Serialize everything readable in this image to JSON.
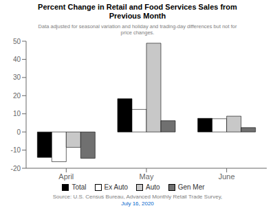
{
  "chart_data": {
    "type": "bar",
    "title": "Percent Change in Retail and Food Services Sales from\nPrevious Month",
    "subtitle": "Data adjusted for seasonal variation and holiday and trading-day differences but not for\nprice changes.",
    "annotations": [
      "Source: U.S. Census Bureau, Advanced Monthly Retail Trade Survey,",
      "July 16, 2020"
    ],
    "categories": [
      "April",
      "May",
      "June"
    ],
    "series": [
      {
        "name": "Total",
        "color": "#000000",
        "values": [
          -14.0,
          18.3,
          7.5
        ]
      },
      {
        "name": "Ex Auto",
        "color": "#ffffff",
        "values": [
          -16.4,
          12.4,
          7.3
        ]
      },
      {
        "name": "Auto",
        "color": "#c8c8c8",
        "values": [
          -8.5,
          48.9,
          8.7
        ]
      },
      {
        "name": "Gen Mer",
        "color": "#707070",
        "values": [
          -14.5,
          6.2,
          2.4
        ]
      }
    ],
    "ylim": [
      -20,
      50
    ],
    "yticks": [
      -20,
      -10,
      0,
      10,
      20,
      30,
      40,
      50
    ],
    "grid": false,
    "legend": "bottom"
  }
}
